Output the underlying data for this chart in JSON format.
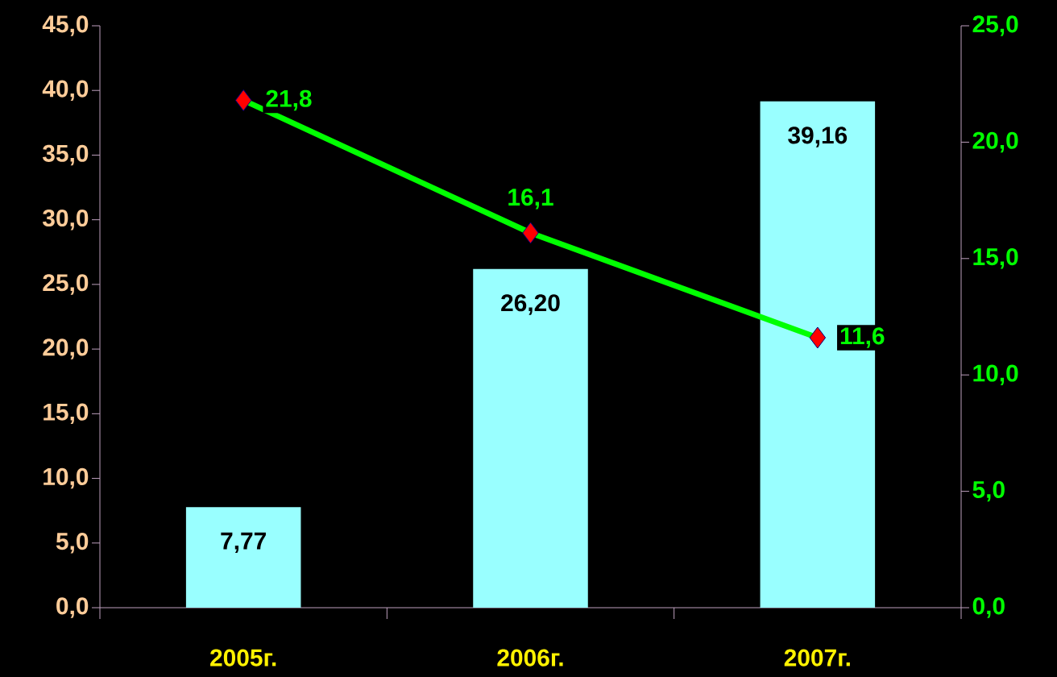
{
  "chart_data": {
    "type": "bar",
    "categories": [
      "2005г.",
      "2006г.",
      "2007г."
    ],
    "series": [
      {
        "color": "#99ffff",
        "values": [
          7.77,
          26.2,
          39.16
        ],
        "value_labels": [
          "7,77",
          "26,20",
          "39,16"
        ]
      },
      {
        "type": "line",
        "axis": "y2",
        "color": "#00ff00",
        "values": [
          21.8,
          16.1,
          11.6
        ],
        "value_labels": [
          "21,8",
          "16,1",
          "11,6"
        ]
      }
    ],
    "marker": "diamond",
    "line_style": "solid",
    "ylim": [
      0,
      45
    ],
    "yticks": [
      {
        "value": 0,
        "label": "0,0"
      },
      {
        "value": 5,
        "label": "5,0"
      },
      {
        "value": 10,
        "label": "10,0"
      },
      {
        "value": 15,
        "label": "15,0"
      },
      {
        "value": 20,
        "label": "20,0"
      },
      {
        "value": 25,
        "label": "25,0"
      },
      {
        "value": 30,
        "label": "30,0"
      },
      {
        "value": 35,
        "label": "35,0"
      },
      {
        "value": 40,
        "label": "40,0"
      },
      {
        "value": 45,
        "label": "45,0"
      }
    ],
    "y2lim": [
      0,
      25
    ],
    "y2ticks": [
      {
        "value": 0,
        "label": "0,0"
      },
      {
        "value": 5,
        "label": "5,0"
      },
      {
        "value": 10,
        "label": "10,0"
      },
      {
        "value": 15,
        "label": "15,0"
      },
      {
        "value": 20,
        "label": "20,0"
      },
      {
        "value": 25,
        "label": "25,0"
      }
    ]
  }
}
